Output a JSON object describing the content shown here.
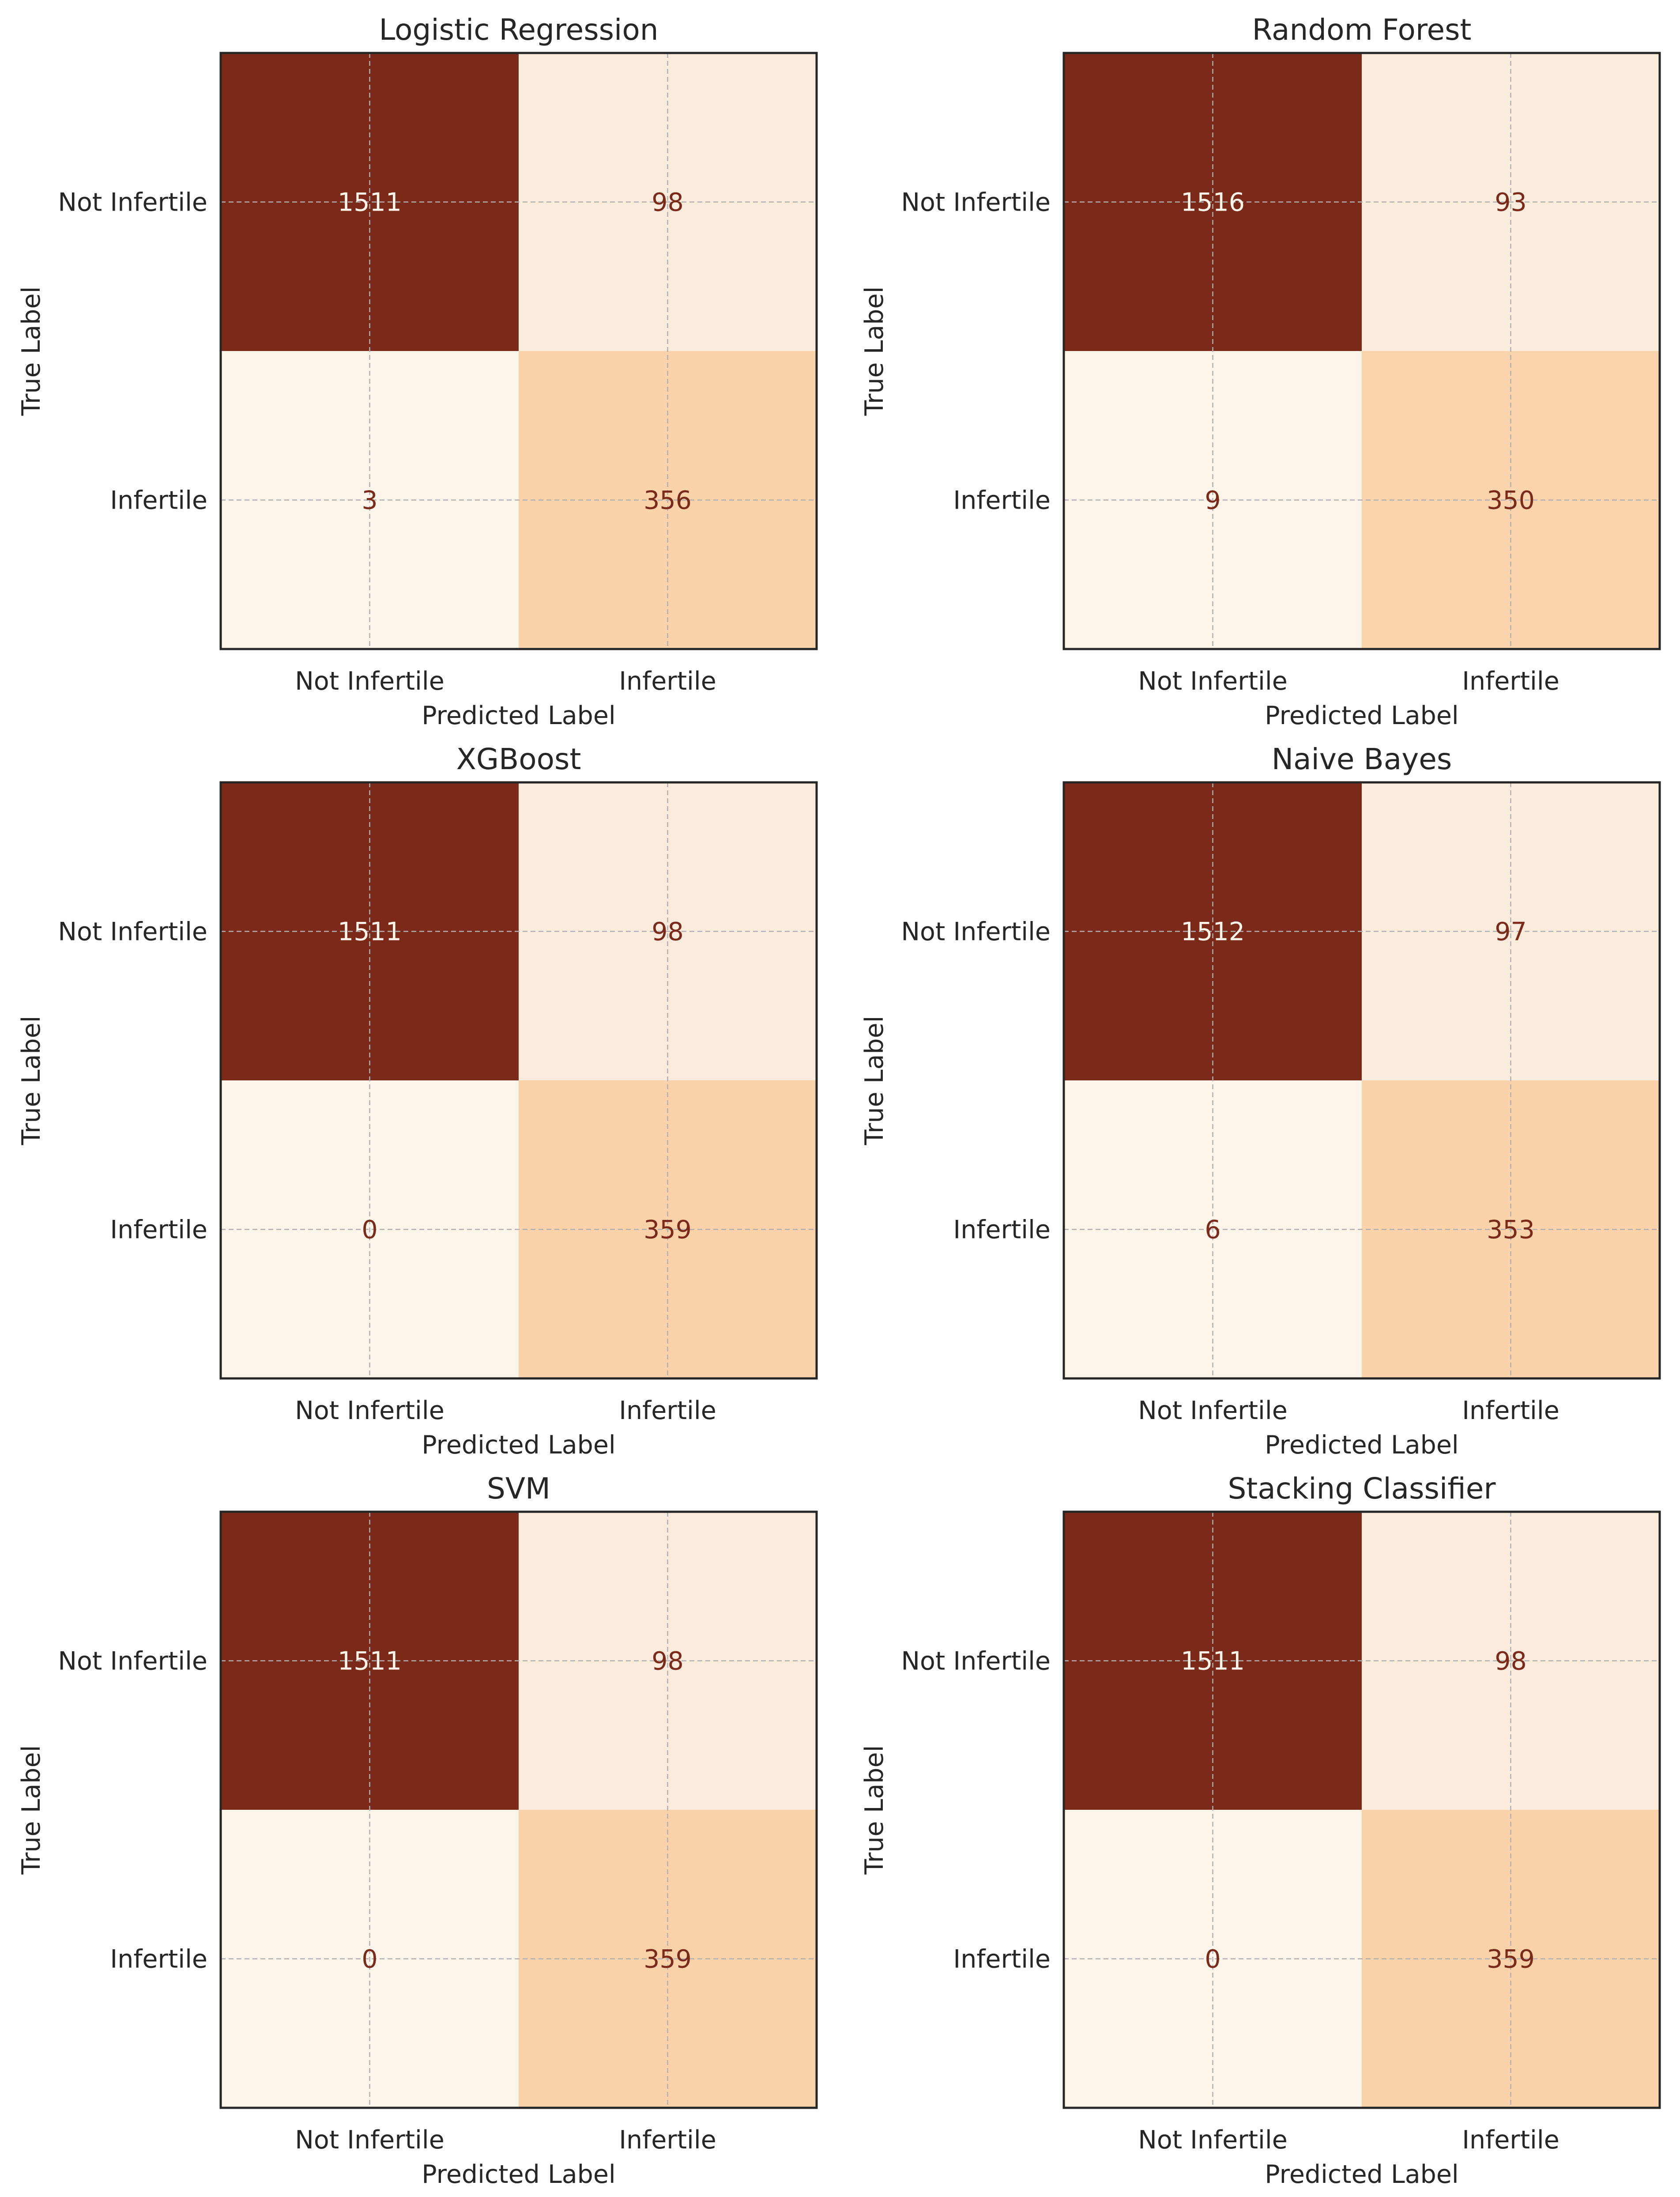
{
  "chart_data": [
    {
      "type": "heatmap",
      "title": "Logistic Regression",
      "xlabel": "Predicted Label",
      "ylabel": "True Label",
      "x_categories": [
        "Not Infertile",
        "Infertile"
      ],
      "y_categories": [
        "Not Infertile",
        "Infertile"
      ],
      "values": [
        [
          1511,
          98
        ],
        [
          3,
          356
        ]
      ],
      "grid": true
    },
    {
      "type": "heatmap",
      "title": "Random Forest",
      "xlabel": "Predicted Label",
      "ylabel": "True Label",
      "x_categories": [
        "Not Infertile",
        "Infertile"
      ],
      "y_categories": [
        "Not Infertile",
        "Infertile"
      ],
      "values": [
        [
          1516,
          93
        ],
        [
          9,
          350
        ]
      ],
      "grid": true
    },
    {
      "type": "heatmap",
      "title": "XGBoost",
      "xlabel": "Predicted Label",
      "ylabel": "True Label",
      "x_categories": [
        "Not Infertile",
        "Infertile"
      ],
      "y_categories": [
        "Not Infertile",
        "Infertile"
      ],
      "values": [
        [
          1511,
          98
        ],
        [
          0,
          359
        ]
      ],
      "grid": true
    },
    {
      "type": "heatmap",
      "title": "Naive Bayes",
      "xlabel": "Predicted Label",
      "ylabel": "True Label",
      "x_categories": [
        "Not Infertile",
        "Infertile"
      ],
      "y_categories": [
        "Not Infertile",
        "Infertile"
      ],
      "values": [
        [
          1512,
          97
        ],
        [
          6,
          353
        ]
      ],
      "grid": true
    },
    {
      "type": "heatmap",
      "title": "SVM",
      "xlabel": "Predicted Label",
      "ylabel": "True Label",
      "x_categories": [
        "Not Infertile",
        "Infertile"
      ],
      "y_categories": [
        "Not Infertile",
        "Infertile"
      ],
      "values": [
        [
          1511,
          98
        ],
        [
          0,
          359
        ]
      ],
      "grid": true
    },
    {
      "type": "heatmap",
      "title": "Stacking Classifier",
      "xlabel": "Predicted Label",
      "ylabel": "True Label",
      "x_categories": [
        "Not Infertile",
        "Infertile"
      ],
      "y_categories": [
        "Not Infertile",
        "Infertile"
      ],
      "values": [
        [
          1511,
          98
        ],
        [
          0,
          359
        ]
      ],
      "grid": true
    }
  ],
  "colors": {
    "colormap_low": "#fdf5ea",
    "colormap_mid_low": "#faecdd",
    "colormap_mid": "#fad2a8",
    "colormap_high": "#7b2919",
    "text_on_dark": "#fdf5ea",
    "text_on_light": "#7b2919"
  }
}
